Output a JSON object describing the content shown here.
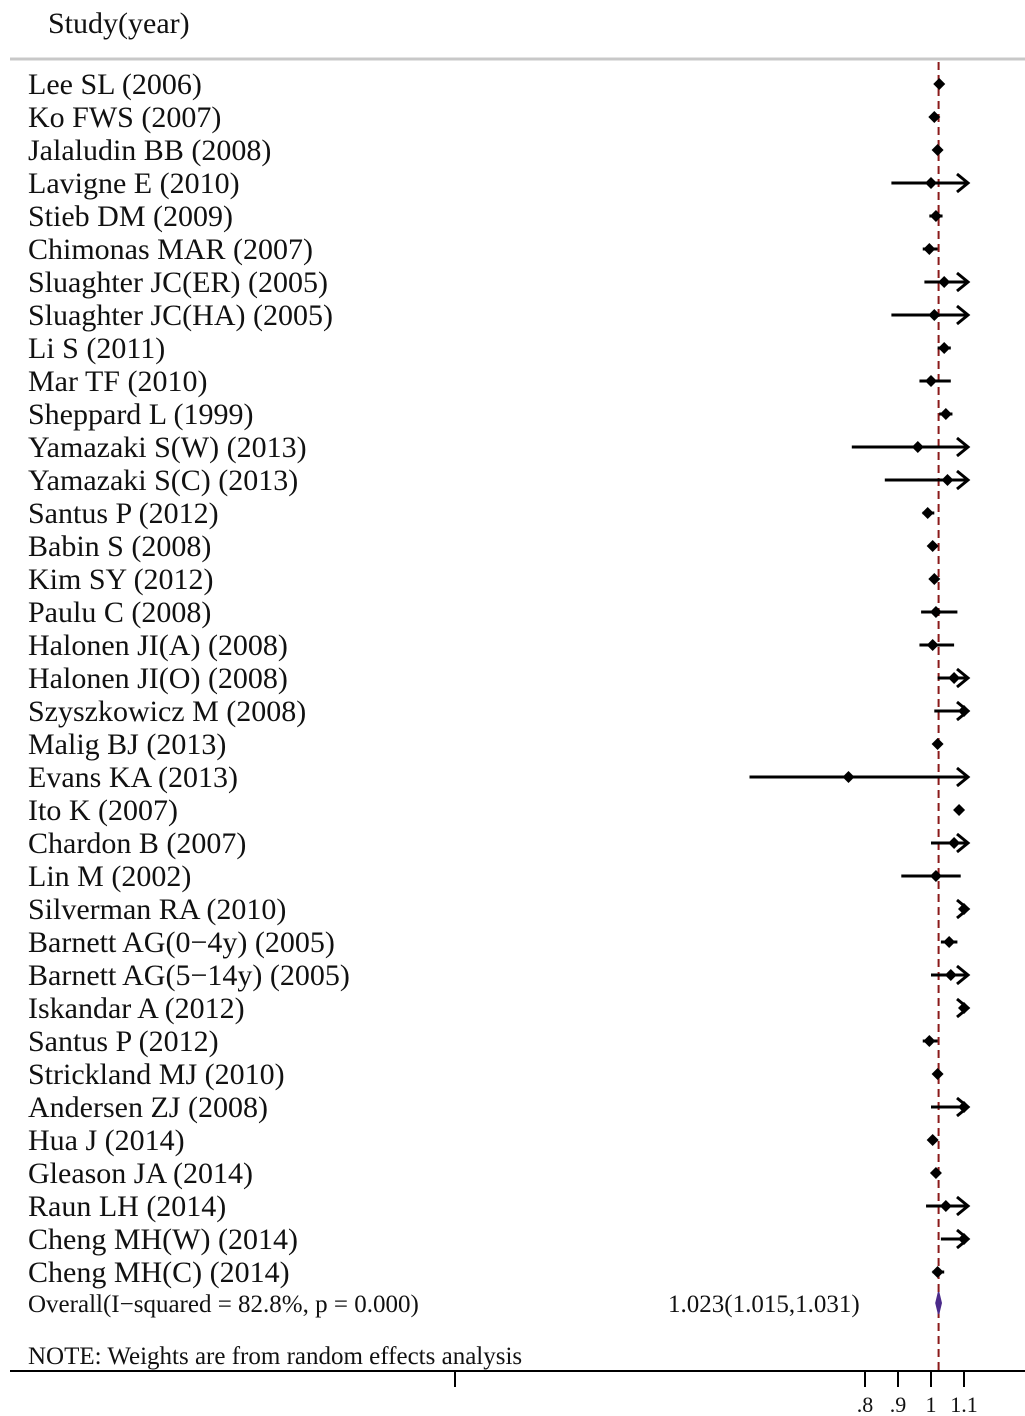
{
  "chart_data": {
    "type": "forest",
    "header": "Study(year)",
    "studies": [
      {
        "label": "Lee SL (2006)",
        "estimate": 1.025,
        "ci": [
          1.02,
          1.03
        ],
        "arrow": false
      },
      {
        "label": "Ko FWS (2007)",
        "estimate": 1.01,
        "ci": [
          1.005,
          1.015
        ],
        "arrow": false
      },
      {
        "label": "Jalaludin BB (2008)",
        "estimate": 1.02,
        "ci": [
          1.015,
          1.025
        ],
        "arrow": false
      },
      {
        "label": "Lavigne E (2010)",
        "estimate": 1.0,
        "ci": [
          0.88,
          1.1
        ],
        "arrow": true
      },
      {
        "label": "Stieb DM (2009)",
        "estimate": 1.015,
        "ci": [
          0.995,
          1.035
        ],
        "arrow": false
      },
      {
        "label": "Chimonas MAR (2007)",
        "estimate": 0.995,
        "ci": [
          0.975,
          1.02
        ],
        "arrow": false
      },
      {
        "label": "Sluaghter JC(ER) (2005)",
        "estimate": 1.04,
        "ci": [
          0.98,
          1.1
        ],
        "arrow": true
      },
      {
        "label": "Sluaghter JC(HA) (2005)",
        "estimate": 1.01,
        "ci": [
          0.88,
          1.1
        ],
        "arrow": true
      },
      {
        "label": "Li S (2011)",
        "estimate": 1.04,
        "ci": [
          1.02,
          1.06
        ],
        "arrow": false
      },
      {
        "label": "Mar TF (2010)",
        "estimate": 1.0,
        "ci": [
          0.965,
          1.06
        ],
        "arrow": false
      },
      {
        "label": "Sheppard L (1999)",
        "estimate": 1.045,
        "ci": [
          1.025,
          1.065
        ],
        "arrow": false
      },
      {
        "label": "Yamazaki S(W) (2013)",
        "estimate": 0.96,
        "ci": [
          0.76,
          1.1
        ],
        "arrow": true
      },
      {
        "label": "Yamazaki S(C) (2013)",
        "estimate": 1.05,
        "ci": [
          0.86,
          1.1
        ],
        "arrow": true
      },
      {
        "label": "Santus P (2012)",
        "estimate": 0.99,
        "ci": [
          0.975,
          1.01
        ],
        "arrow": false
      },
      {
        "label": "Babin S (2008)",
        "estimate": 1.005,
        "ci": [
          0.995,
          1.015
        ],
        "arrow": false
      },
      {
        "label": "Kim SY (2012)",
        "estimate": 1.01,
        "ci": [
          1.0,
          1.02
        ],
        "arrow": false
      },
      {
        "label": "Paulu C (2008)",
        "estimate": 1.015,
        "ci": [
          0.97,
          1.08
        ],
        "arrow": false
      },
      {
        "label": "Halonen JI(A) (2008)",
        "estimate": 1.005,
        "ci": [
          0.965,
          1.07
        ],
        "arrow": false
      },
      {
        "label": "Halonen JI(O) (2008)",
        "estimate": 1.07,
        "ci": [
          1.02,
          1.1
        ],
        "arrow": true
      },
      {
        "label": "Szyszkowicz M (2008)",
        "estimate": 1.1,
        "ci": [
          1.01,
          1.1
        ],
        "arrow": true
      },
      {
        "label": "Malig BJ (2013)",
        "estimate": 1.02,
        "ci": [
          1.015,
          1.025
        ],
        "arrow": false
      },
      {
        "label": "Evans KA (2013)",
        "estimate": 0.75,
        "ci": [
          0.45,
          1.1
        ],
        "arrow": true
      },
      {
        "label": "Ito K (2007)",
        "estimate": 1.085,
        "ci": [
          1.08,
          1.09
        ],
        "arrow": false
      },
      {
        "label": "Chardon B (2007)",
        "estimate": 1.07,
        "ci": [
          1.0,
          1.1
        ],
        "arrow": true
      },
      {
        "label": "Lin M (2002)",
        "estimate": 1.015,
        "ci": [
          0.91,
          1.09
        ],
        "arrow": false
      },
      {
        "label": "Silverman RA (2010)",
        "estimate": 1.1,
        "ci": [
          1.09,
          1.1
        ],
        "arrow": true
      },
      {
        "label": "Barnett AG(0−4y) (2005)",
        "estimate": 1.055,
        "ci": [
          1.03,
          1.08
        ],
        "arrow": false
      },
      {
        "label": "Barnett AG(5−14y) (2005)",
        "estimate": 1.06,
        "ci": [
          1.0,
          1.1
        ],
        "arrow": true
      },
      {
        "label": "Iskandar A (2012)",
        "estimate": 1.1,
        "ci": [
          1.09,
          1.1
        ],
        "arrow": true
      },
      {
        "label": "Santus P (2012)",
        "estimate": 0.995,
        "ci": [
          0.975,
          1.02
        ],
        "arrow": false
      },
      {
        "label": "Strickland MJ (2010)",
        "estimate": 1.02,
        "ci": [
          1.01,
          1.03
        ],
        "arrow": false
      },
      {
        "label": "Andersen ZJ (2008)",
        "estimate": 1.1,
        "ci": [
          1.0,
          1.1
        ],
        "arrow": true
      },
      {
        "label": "Hua J (2014)",
        "estimate": 1.005,
        "ci": [
          1.0,
          1.01
        ],
        "arrow": false
      },
      {
        "label": "Gleason JA (2014)",
        "estimate": 1.015,
        "ci": [
          1.01,
          1.02
        ],
        "arrow": false
      },
      {
        "label": "Raun LH (2014)",
        "estimate": 1.045,
        "ci": [
          0.985,
          1.1
        ],
        "arrow": true
      },
      {
        "label": "Cheng MH(W) (2014)",
        "estimate": 1.1,
        "ci": [
          1.03,
          1.1
        ],
        "arrow": true
      },
      {
        "label": "Cheng MH(C) (2014)",
        "estimate": 1.02,
        "ci": [
          1.005,
          1.04
        ],
        "arrow": false
      }
    ],
    "overall": {
      "label": "Overall(I−squared = 82.8%, p = 0.000)",
      "estimate": 1.023,
      "ci": [
        1.015,
        1.031
      ],
      "text": "1.023(1.015,1.031)"
    },
    "note": "NOTE: Weights are from random effects analysis",
    "xticks": [
      0.8,
      0.9,
      1.0,
      1.1
    ],
    "xtick_labels": [
      ".8",
      ".9",
      "1",
      "1.1"
    ],
    "xlim": [
      0.45,
      1.1
    ],
    "reference_value": 1.023,
    "colors": {
      "marks": "#000000",
      "reference_line": "#8b1a1a",
      "overall_diamond": "#4b2a8a"
    }
  }
}
